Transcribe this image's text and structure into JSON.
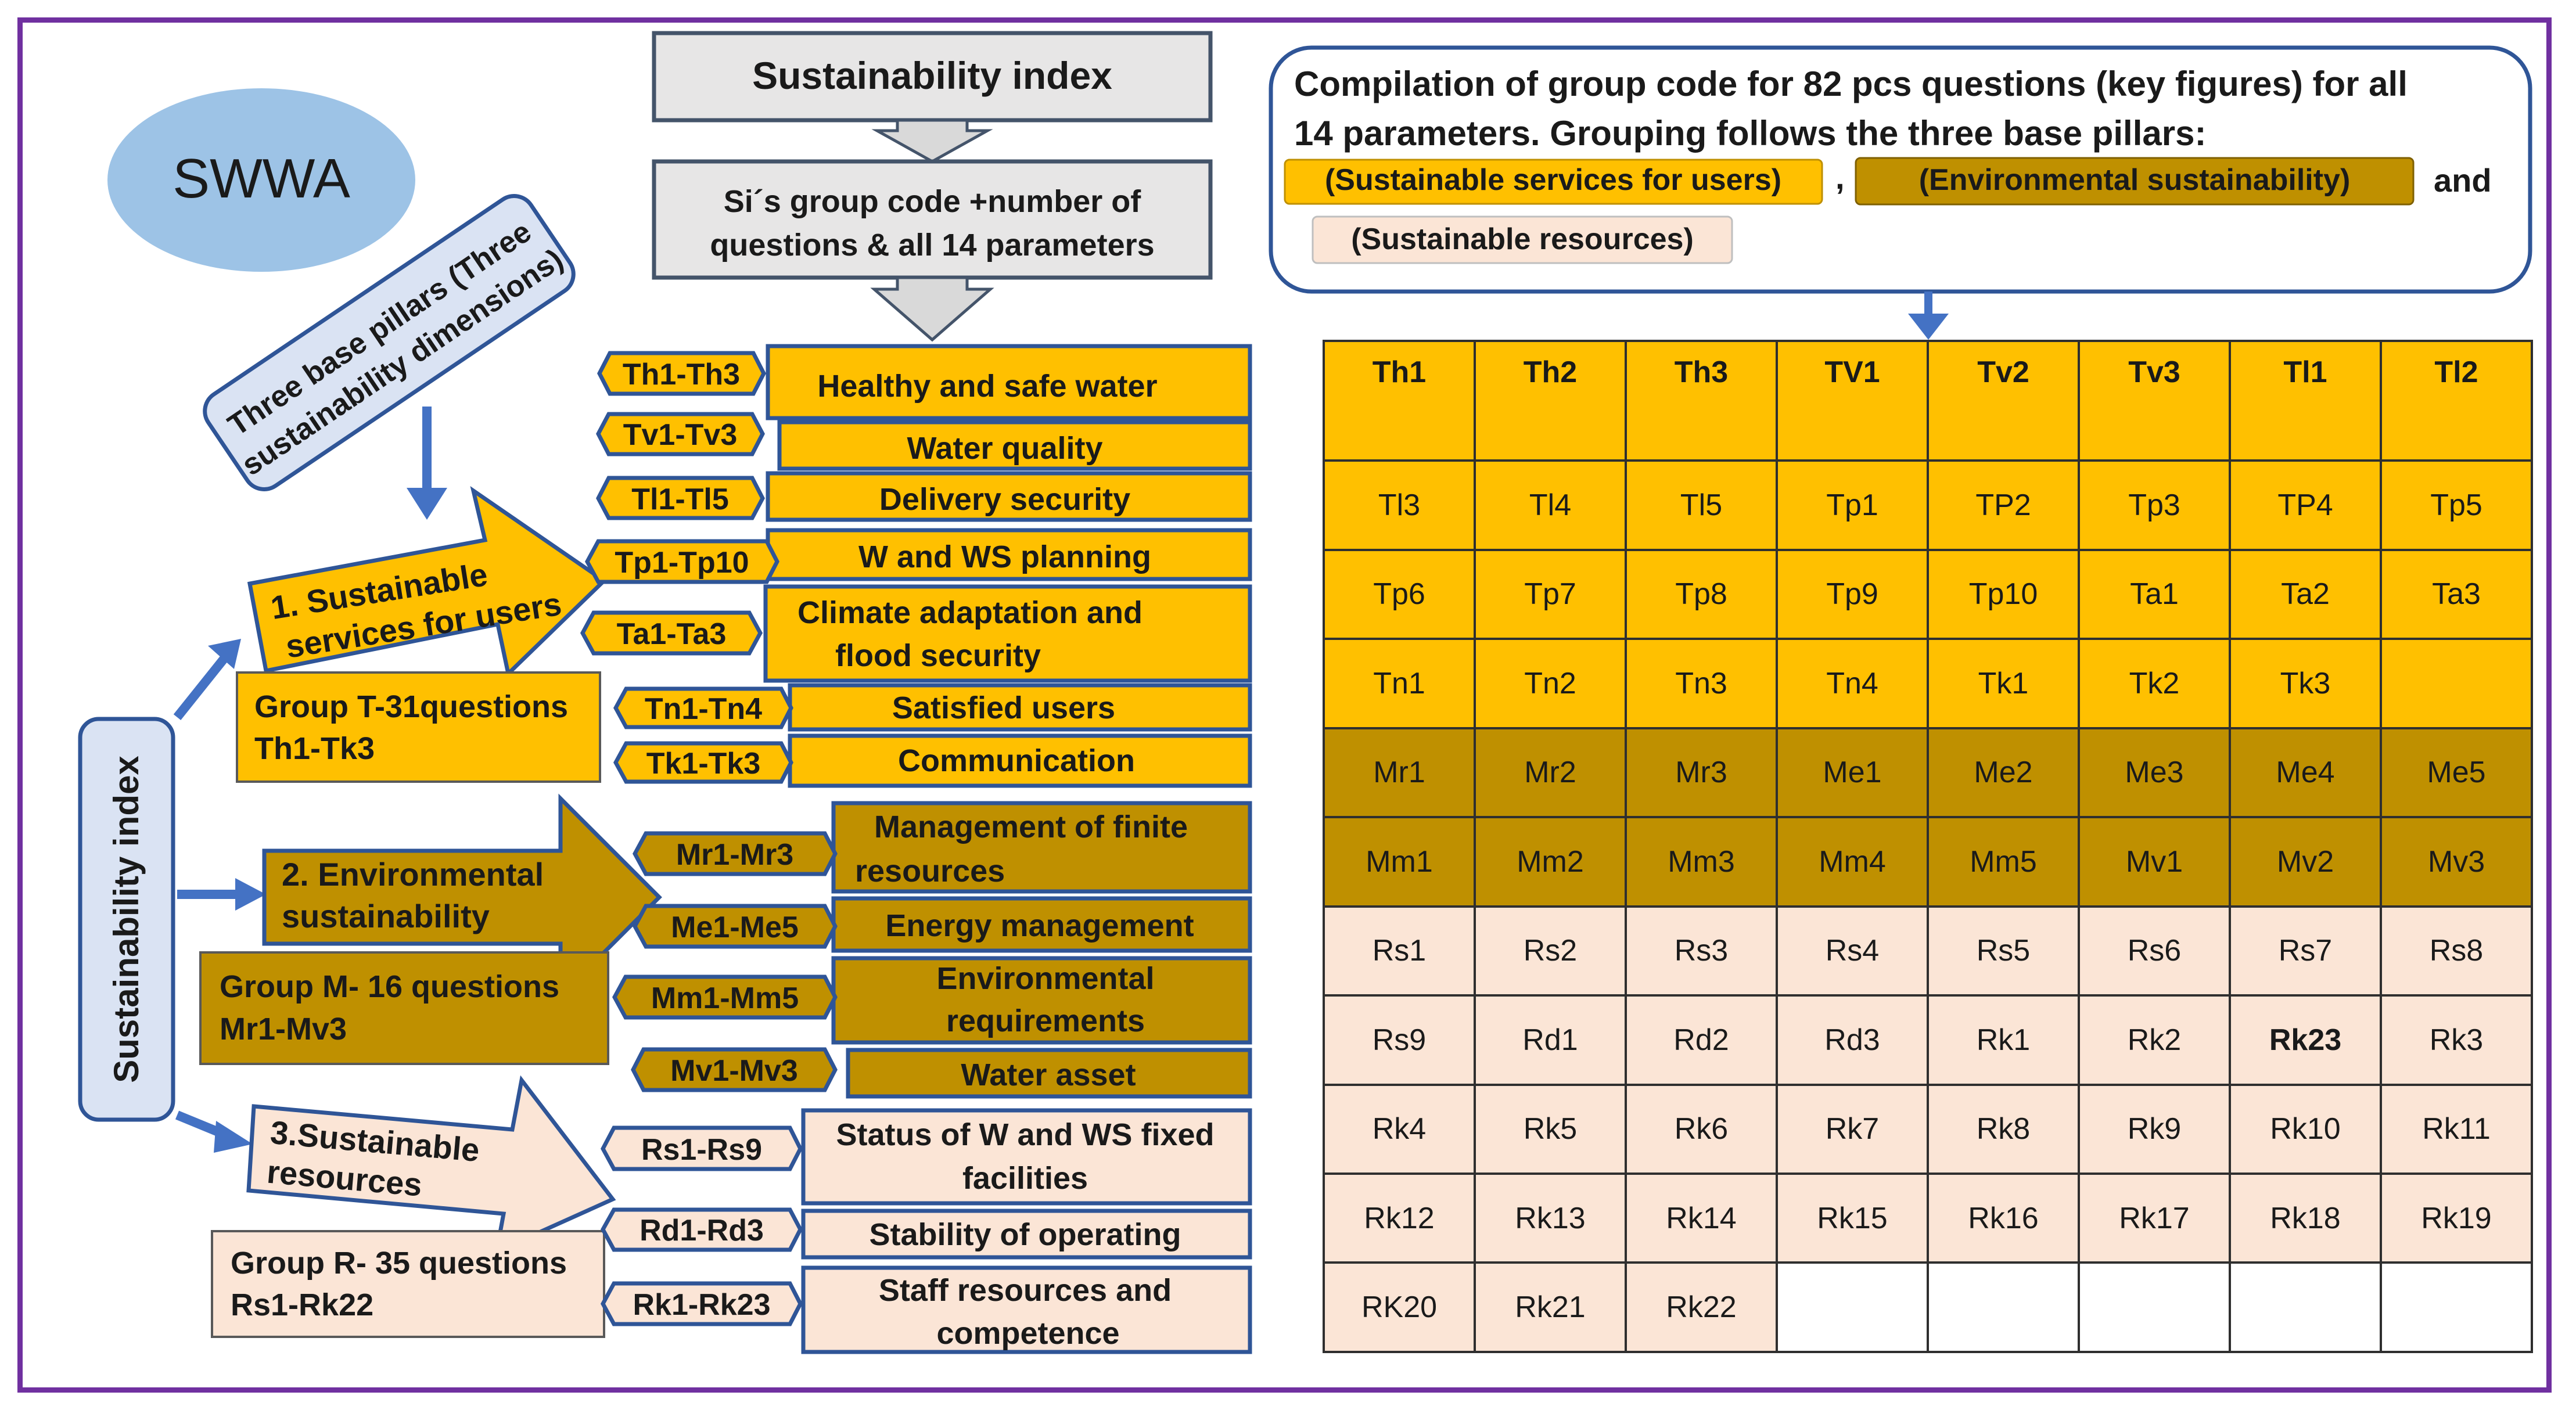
{
  "logo": "SWWA",
  "header": {
    "title": "Sustainability index",
    "subtitle_line1": "Si´s group code +number of",
    "subtitle_line2": "questions & all 14 parameters"
  },
  "pillars_note": {
    "line1": "Three base pillars (Three",
    "line2": "sustainability dimensions)"
  },
  "vertical_label": "Sustainability index",
  "pillars": [
    {
      "title_line1": "1. Sustainable",
      "title_line2": "services for users",
      "group_line1": "Group T-31questions",
      "group_line2": "Th1-Tk3",
      "color": "#ffc000"
    },
    {
      "title_line1": "2. Environmental",
      "title_line2": "sustainability",
      "group_line1": "Group M- 16 questions",
      "group_line2": "Mr1-Mv3",
      "color": "#bf9000"
    },
    {
      "title_line1": "3.Sustainable",
      "title_line2": "resources",
      "group_line1": "Group R- 35 questions",
      "group_line2": "Rs1-Rk22",
      "color": "#fbe5d6"
    }
  ],
  "parameters": [
    {
      "code": "Th1-Th3",
      "label_line1": "Healthy and safe water",
      "label_line2": ""
    },
    {
      "code": "Tv1-Tv3",
      "label_line1": "Water quality",
      "label_line2": ""
    },
    {
      "code": "Tl1-Tl5",
      "label_line1": "Delivery security",
      "label_line2": ""
    },
    {
      "code": "Tp1-Tp10",
      "label_line1": "W and WS planning",
      "label_line2": ""
    },
    {
      "code": "Ta1-Ta3",
      "label_line1": "Climate adaptation and",
      "label_line2": "flood security"
    },
    {
      "code": "Tn1-Tn4",
      "label_line1": "Satisfied users",
      "label_line2": ""
    },
    {
      "code": "Tk1-Tk3",
      "label_line1": "Communication",
      "label_line2": ""
    },
    {
      "code": "Mr1-Mr3",
      "label_line1": "Management of finite",
      "label_line2": "resources"
    },
    {
      "code": "Me1-Me5",
      "label_line1": "Energy management",
      "label_line2": ""
    },
    {
      "code": "Mm1-Mm5",
      "label_line1": "Environmental",
      "label_line2": "requirements"
    },
    {
      "code": "Mv1-Mv3",
      "label_line1": "Water asset",
      "label_line2": ""
    },
    {
      "code": "Rs1-Rs9",
      "label_line1": "Status of W and WS fixed",
      "label_line2": "facilities"
    },
    {
      "code": "Rd1-Rd3",
      "label_line1": "Stability of operating",
      "label_line2": ""
    },
    {
      "code": "Rk1-Rk23",
      "label_line1": "Staff resources and",
      "label_line2": "competence"
    }
  ],
  "compilation": {
    "line1": "Compilation of group code for 82 pcs questions (key figures) for all",
    "line2": "14 parameters. Grouping follows the three base pillars:",
    "chip1": "(Sustainable services for users)",
    "sep": ",",
    "chip2": "(Environmental sustainability)",
    "and": "and",
    "chip3": "(Sustainable resources)"
  },
  "colors": {
    "users": "#ffc000",
    "environment": "#bf9000",
    "resources": "#fbe5d6",
    "header": "#e7e6e6",
    "note": "#dae3f3",
    "logo": "#9dc3e6",
    "arrow": "#4472c4"
  },
  "grid": {
    "rows": [
      [
        "Th1",
        "Th2",
        "Th3",
        "TV1",
        "Tv2",
        "Tv3",
        "Tl1",
        "Tl2"
      ],
      [
        "Tl3",
        "Tl4",
        "Tl5",
        "Tp1",
        "TP2",
        "Tp3",
        "TP4",
        "Tp5"
      ],
      [
        "Tp6",
        "Tp7",
        "Tp8",
        "Tp9",
        "Tp10",
        "Ta1",
        "Ta2",
        "Ta3"
      ],
      [
        "Tn1",
        "Tn2",
        "Tn3",
        "Tn4",
        "Tk1",
        "Tk2",
        "Tk3",
        ""
      ],
      [
        "Mr1",
        "Mr2",
        "Mr3",
        "Me1",
        "Me2",
        "Me3",
        "Me4",
        "Me5"
      ],
      [
        "Mm1",
        "Mm2",
        "Mm3",
        "Mm4",
        "Mm5",
        "Mv1",
        "Mv2",
        "Mv3"
      ],
      [
        "Rs1",
        "Rs2",
        "Rs3",
        "Rs4",
        "Rs5",
        "Rs6",
        "Rs7",
        "Rs8"
      ],
      [
        "Rs9",
        "Rd1",
        "Rd2",
        "Rd3",
        "Rk1",
        "Rk2",
        "Rk23",
        "Rk3"
      ],
      [
        "Rk4",
        "Rk5",
        "Rk6",
        "Rk7",
        "Rk8",
        "Rk9",
        "Rk10",
        "Rk11"
      ],
      [
        "Rk12",
        "Rk13",
        "Rk14",
        "Rk15",
        "Rk16",
        "Rk17",
        "Rk18",
        "Rk19"
      ],
      [
        "RK20",
        "Rk21",
        "Rk22",
        "",
        "",
        "",
        "",
        ""
      ]
    ],
    "row_groups": [
      "users",
      "users",
      "users",
      "users",
      "environment",
      "environment",
      "resources",
      "resources",
      "resources",
      "resources",
      "resources"
    ],
    "bold_cells": [
      "Rk23"
    ]
  }
}
